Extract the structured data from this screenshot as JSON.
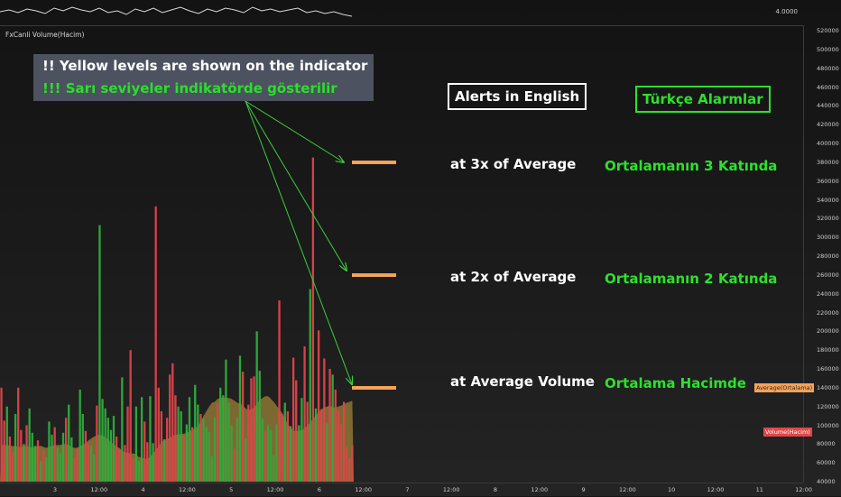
{
  "indicator_title": "FxCanli Volume(Hacim)",
  "price_axis_label": "4.0000",
  "note": {
    "line1": "!! Yellow levels are shown on the indicator",
    "line2": "!!! Sarı seviyeler indikatörde gösterilir"
  },
  "headers": {
    "english": "Alerts in English",
    "turkish": "Türkçe Alarmlar"
  },
  "levels": [
    {
      "en": "at 3x of Average",
      "tr": "Ortalamanın 3 Katında"
    },
    {
      "en": "at 2x of Average",
      "tr": "Ortalamanın 2 Katında"
    },
    {
      "en": "at Average Volume",
      "tr": "Ortalama Hacimde"
    }
  ],
  "badges": {
    "average": "Average(Ortalama)",
    "volume": "Volume(Hacim)"
  },
  "y_axis_ticks": [
    "520000",
    "500000",
    "480000",
    "460000",
    "440000",
    "420000",
    "400000",
    "380000",
    "360000",
    "340000",
    "320000",
    "300000",
    "280000",
    "260000",
    "240000",
    "220000",
    "200000",
    "180000",
    "160000",
    "140000",
    "120000",
    "100000",
    "80000",
    "60000",
    "40000"
  ],
  "x_axis_ticks": [
    "3",
    "12:00",
    "4",
    "12:00",
    "5",
    "12:00",
    "6",
    "12:00",
    "7",
    "12:00",
    "8",
    "12:00",
    "9",
    "12:00",
    "10",
    "12:00",
    "11",
    "12:00"
  ],
  "colors": {
    "up": "#2fae3c",
    "down": "#e0454a",
    "average_area": "#c8a642",
    "level": "#f4a35a",
    "tr_text": "#2ee02e"
  },
  "chart_data": {
    "type": "bar",
    "ylim": [
      40000,
      520000
    ],
    "series": [
      {
        "values": [
          140000,
          105000,
          120000,
          88000,
          72000,
          112000,
          140000,
          95000,
          80000,
          100000,
          118000,
          92000,
          78000,
          84000,
          62000,
          73000,
          66000,
          104000,
          90000,
          98000,
          76000,
          70000,
          92000,
          108000,
          122000,
          87000,
          66000,
          76000,
          138000,
          112000,
          94000,
          80000,
          78000,
          69000,
          121000,
          313000,
          128000,
          118000,
          108000,
          95000,
          110000,
          88000,
          74000,
          151000,
          79000,
          120000,
          180000,
          65000,
          120000,
          62000,
          130000,
          104000,
          82000,
          131000,
          81000,
          333000,
          140000,
          115000,
          85000,
          108000,
          154000,
          166000,
          132000,
          120000,
          115000,
          89000,
          101000,
          130000,
          98000,
          143000,
          122000,
          112000,
          107000,
          98000,
          93000,
          67000,
          108000,
          123000,
          140000,
          132000,
          170000,
          124000,
          100000,
          75000,
          108000,
          174000,
          157000,
          86000,
          122000,
          150000,
          152000,
          200000,
          158000,
          107000,
          94000,
          100000,
          95000,
          68000,
          101000,
          233000,
          112000,
          124000,
          115000,
          99000,
          172000,
          148000,
          100000,
          129000,
          184000,
          125000,
          245000,
          385000,
          118000,
          201000,
          117000,
          171000,
          102000,
          160000,
          154000,
          138000,
          115000,
          101000,
          125000,
          77000,
          65000,
          79000
        ],
        "direction": [
          "d",
          "d",
          "u",
          "d",
          "d",
          "u",
          "d",
          "d",
          "u",
          "d",
          "u",
          "u",
          "u",
          "d",
          "u",
          "d",
          "u",
          "u",
          "u",
          "d",
          "u",
          "u",
          "u",
          "d",
          "u",
          "u",
          "d",
          "d",
          "u",
          "u",
          "d",
          "d",
          "u",
          "u",
          "d",
          "u",
          "u",
          "u",
          "u",
          "u",
          "u",
          "d",
          "d",
          "u",
          "d",
          "d",
          "d",
          "d",
          "u",
          "u",
          "u",
          "d",
          "d",
          "u",
          "u",
          "d",
          "d",
          "d",
          "u",
          "d",
          "d",
          "d",
          "d",
          "u",
          "u",
          "d",
          "u",
          "u",
          "d",
          "u",
          "u",
          "d",
          "u",
          "u",
          "u",
          "u",
          "u",
          "d",
          "u",
          "u",
          "u",
          "u",
          "u",
          "d",
          "u",
          "u",
          "d",
          "u",
          "d",
          "d",
          "d",
          "u",
          "u",
          "u",
          "d",
          "u",
          "u",
          "u",
          "u",
          "d",
          "d",
          "u",
          "d",
          "u",
          "d",
          "d",
          "u",
          "u",
          "d",
          "d",
          "u",
          "d",
          "u",
          "d",
          "d",
          "d",
          "u",
          "d",
          "u",
          "d",
          "d",
          "d",
          "d",
          "d",
          "d",
          "d"
        ]
      },
      {
        "name": "Average(Ortalama)",
        "values": [
          79000,
          79000,
          79000,
          78000,
          78000,
          78000,
          77000,
          77000,
          78000,
          78000,
          77000,
          76000,
          77000,
          78000,
          78000,
          77000,
          76000,
          77000,
          78000,
          79000,
          79000,
          79000,
          80000,
          80000,
          79000,
          77000,
          76000,
          76000,
          78000,
          79000,
          81000,
          84000,
          86000,
          88000,
          89000,
          90000,
          89000,
          87000,
          85000,
          82000,
          80000,
          77000,
          76000,
          73000,
          71000,
          71000,
          70000,
          70000,
          69000,
          66000,
          66000,
          64000,
          65000,
          66000,
          70000,
          74000,
          78000,
          82000,
          84000,
          86000,
          86000,
          89000,
          90000,
          90000,
          91000,
          91000,
          92000,
          94000,
          95000,
          97000,
          99000,
          104000,
          110000,
          115000,
          120000,
          124000,
          125000,
          128000,
          129000,
          130000,
          129000,
          129000,
          128000,
          126000,
          124000,
          123000,
          121000,
          118000,
          116000,
          117000,
          119000,
          123000,
          127000,
          129000,
          131000,
          131000,
          128000,
          125000,
          121000,
          117000,
          113000,
          107000,
          101000,
          98000,
          94000,
          94000,
          94000,
          95000,
          97000,
          100000,
          103000,
          107000,
          111000,
          114000,
          117000,
          119000,
          120000,
          121000,
          119000,
          119000,
          120000,
          121000,
          122000,
          124000,
          125000,
          126000
        ]
      }
    ]
  }
}
